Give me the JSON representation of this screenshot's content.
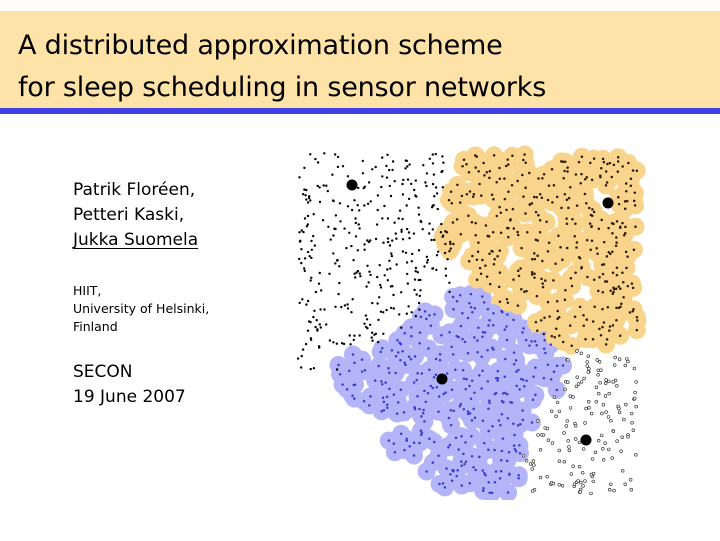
{
  "slide": {
    "title_line1": "A distributed approximation scheme",
    "title_line2": "for sleep scheduling in sensor networks"
  },
  "authors": [
    "Patrik Floréen,",
    "Petteri Kaski,",
    "Jukka Suomela"
  ],
  "affiliation": [
    "HIIT,",
    "University of Helsinki,",
    "Finland"
  ],
  "conference": {
    "name": "SECON",
    "date": "19 June 2007"
  },
  "colors": {
    "title_bg": "#fde3a7",
    "title_rule": "#4040e6",
    "region_orange": "#f8d48c",
    "region_blue": "#b4b4f8",
    "blue_node": "#3a3ad0",
    "orange_node": "#2a1a00"
  }
}
